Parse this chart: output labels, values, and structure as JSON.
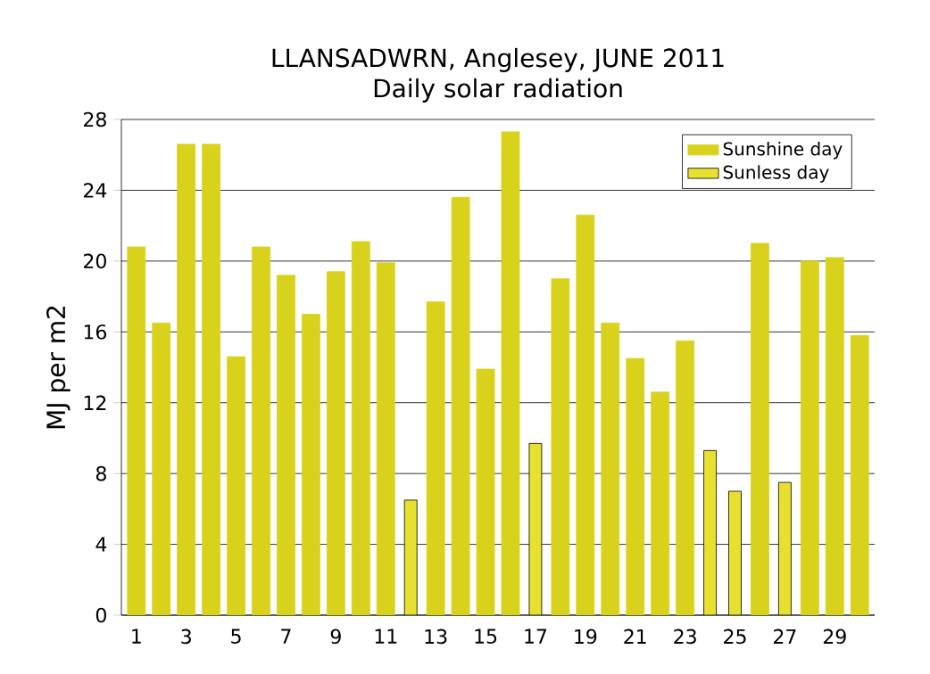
{
  "chart_data": {
    "type": "bar",
    "title": "LLANSADWRN, Anglesey, JUNE 2011",
    "subtitle": "Daily solar radiation",
    "ylabel": "MJ per m2",
    "categories": [
      "1",
      null,
      "3",
      null,
      "5",
      null,
      "7",
      null,
      "9",
      null,
      "11",
      null,
      "13",
      null,
      "15",
      null,
      "17",
      null,
      "19",
      null,
      "21",
      null,
      "23",
      null,
      "25",
      null,
      "27",
      null,
      "29",
      null
    ],
    "series": [
      {
        "name": "Sunshine day",
        "color": "#d8d21c",
        "values": [
          20.8,
          16.5,
          26.6,
          26.6,
          14.6,
          20.8,
          19.2,
          17.0,
          19.4,
          21.1,
          19.9,
          null,
          17.7,
          23.6,
          13.9,
          27.3,
          null,
          19.0,
          22.6,
          16.5,
          14.5,
          12.6,
          15.5,
          null,
          null,
          21.0,
          null,
          20.0,
          20.2,
          15.8
        ]
      },
      {
        "name": "Sunless day",
        "color": "#e8e030",
        "values": [
          null,
          null,
          null,
          null,
          null,
          null,
          null,
          null,
          null,
          null,
          null,
          6.5,
          null,
          null,
          null,
          null,
          9.7,
          null,
          null,
          null,
          null,
          null,
          null,
          9.3,
          7.0,
          null,
          7.5,
          null,
          null,
          null
        ]
      }
    ],
    "ylim": [
      0,
      28
    ],
    "yticks": [
      0,
      4,
      8,
      12,
      16,
      20,
      24,
      28
    ],
    "grid": "y",
    "legend": "top right"
  }
}
